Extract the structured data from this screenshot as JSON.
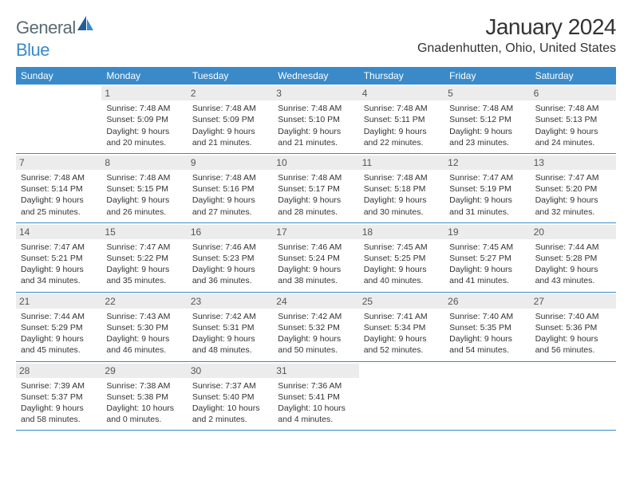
{
  "brand": {
    "part1": "General",
    "part2": "Blue"
  },
  "title": "January 2024",
  "location": "Gnadenhutten, Ohio, United States",
  "colors": {
    "header_bg": "#3a8ac9",
    "header_fg": "#ffffff",
    "divider": "#3a8ac9",
    "daynum_bg": "#ececec",
    "logo_gray": "#5a6a72",
    "logo_blue": "#3a8ac9"
  },
  "dayNames": [
    "Sunday",
    "Monday",
    "Tuesday",
    "Wednesday",
    "Thursday",
    "Friday",
    "Saturday"
  ],
  "weeks": [
    [
      {
        "empty": true
      },
      {
        "n": "1",
        "sr": "Sunrise: 7:48 AM",
        "ss": "Sunset: 5:09 PM",
        "d1": "Daylight: 9 hours",
        "d2": "and 20 minutes."
      },
      {
        "n": "2",
        "sr": "Sunrise: 7:48 AM",
        "ss": "Sunset: 5:09 PM",
        "d1": "Daylight: 9 hours",
        "d2": "and 21 minutes."
      },
      {
        "n": "3",
        "sr": "Sunrise: 7:48 AM",
        "ss": "Sunset: 5:10 PM",
        "d1": "Daylight: 9 hours",
        "d2": "and 21 minutes."
      },
      {
        "n": "4",
        "sr": "Sunrise: 7:48 AM",
        "ss": "Sunset: 5:11 PM",
        "d1": "Daylight: 9 hours",
        "d2": "and 22 minutes."
      },
      {
        "n": "5",
        "sr": "Sunrise: 7:48 AM",
        "ss": "Sunset: 5:12 PM",
        "d1": "Daylight: 9 hours",
        "d2": "and 23 minutes."
      },
      {
        "n": "6",
        "sr": "Sunrise: 7:48 AM",
        "ss": "Sunset: 5:13 PM",
        "d1": "Daylight: 9 hours",
        "d2": "and 24 minutes."
      }
    ],
    [
      {
        "n": "7",
        "sr": "Sunrise: 7:48 AM",
        "ss": "Sunset: 5:14 PM",
        "d1": "Daylight: 9 hours",
        "d2": "and 25 minutes."
      },
      {
        "n": "8",
        "sr": "Sunrise: 7:48 AM",
        "ss": "Sunset: 5:15 PM",
        "d1": "Daylight: 9 hours",
        "d2": "and 26 minutes."
      },
      {
        "n": "9",
        "sr": "Sunrise: 7:48 AM",
        "ss": "Sunset: 5:16 PM",
        "d1": "Daylight: 9 hours",
        "d2": "and 27 minutes."
      },
      {
        "n": "10",
        "sr": "Sunrise: 7:48 AM",
        "ss": "Sunset: 5:17 PM",
        "d1": "Daylight: 9 hours",
        "d2": "and 28 minutes."
      },
      {
        "n": "11",
        "sr": "Sunrise: 7:48 AM",
        "ss": "Sunset: 5:18 PM",
        "d1": "Daylight: 9 hours",
        "d2": "and 30 minutes."
      },
      {
        "n": "12",
        "sr": "Sunrise: 7:47 AM",
        "ss": "Sunset: 5:19 PM",
        "d1": "Daylight: 9 hours",
        "d2": "and 31 minutes."
      },
      {
        "n": "13",
        "sr": "Sunrise: 7:47 AM",
        "ss": "Sunset: 5:20 PM",
        "d1": "Daylight: 9 hours",
        "d2": "and 32 minutes."
      }
    ],
    [
      {
        "n": "14",
        "sr": "Sunrise: 7:47 AM",
        "ss": "Sunset: 5:21 PM",
        "d1": "Daylight: 9 hours",
        "d2": "and 34 minutes."
      },
      {
        "n": "15",
        "sr": "Sunrise: 7:47 AM",
        "ss": "Sunset: 5:22 PM",
        "d1": "Daylight: 9 hours",
        "d2": "and 35 minutes."
      },
      {
        "n": "16",
        "sr": "Sunrise: 7:46 AM",
        "ss": "Sunset: 5:23 PM",
        "d1": "Daylight: 9 hours",
        "d2": "and 36 minutes."
      },
      {
        "n": "17",
        "sr": "Sunrise: 7:46 AM",
        "ss": "Sunset: 5:24 PM",
        "d1": "Daylight: 9 hours",
        "d2": "and 38 minutes."
      },
      {
        "n": "18",
        "sr": "Sunrise: 7:45 AM",
        "ss": "Sunset: 5:25 PM",
        "d1": "Daylight: 9 hours",
        "d2": "and 40 minutes."
      },
      {
        "n": "19",
        "sr": "Sunrise: 7:45 AM",
        "ss": "Sunset: 5:27 PM",
        "d1": "Daylight: 9 hours",
        "d2": "and 41 minutes."
      },
      {
        "n": "20",
        "sr": "Sunrise: 7:44 AM",
        "ss": "Sunset: 5:28 PM",
        "d1": "Daylight: 9 hours",
        "d2": "and 43 minutes."
      }
    ],
    [
      {
        "n": "21",
        "sr": "Sunrise: 7:44 AM",
        "ss": "Sunset: 5:29 PM",
        "d1": "Daylight: 9 hours",
        "d2": "and 45 minutes."
      },
      {
        "n": "22",
        "sr": "Sunrise: 7:43 AM",
        "ss": "Sunset: 5:30 PM",
        "d1": "Daylight: 9 hours",
        "d2": "and 46 minutes."
      },
      {
        "n": "23",
        "sr": "Sunrise: 7:42 AM",
        "ss": "Sunset: 5:31 PM",
        "d1": "Daylight: 9 hours",
        "d2": "and 48 minutes."
      },
      {
        "n": "24",
        "sr": "Sunrise: 7:42 AM",
        "ss": "Sunset: 5:32 PM",
        "d1": "Daylight: 9 hours",
        "d2": "and 50 minutes."
      },
      {
        "n": "25",
        "sr": "Sunrise: 7:41 AM",
        "ss": "Sunset: 5:34 PM",
        "d1": "Daylight: 9 hours",
        "d2": "and 52 minutes."
      },
      {
        "n": "26",
        "sr": "Sunrise: 7:40 AM",
        "ss": "Sunset: 5:35 PM",
        "d1": "Daylight: 9 hours",
        "d2": "and 54 minutes."
      },
      {
        "n": "27",
        "sr": "Sunrise: 7:40 AM",
        "ss": "Sunset: 5:36 PM",
        "d1": "Daylight: 9 hours",
        "d2": "and 56 minutes."
      }
    ],
    [
      {
        "n": "28",
        "sr": "Sunrise: 7:39 AM",
        "ss": "Sunset: 5:37 PM",
        "d1": "Daylight: 9 hours",
        "d2": "and 58 minutes."
      },
      {
        "n": "29",
        "sr": "Sunrise: 7:38 AM",
        "ss": "Sunset: 5:38 PM",
        "d1": "Daylight: 10 hours",
        "d2": "and 0 minutes."
      },
      {
        "n": "30",
        "sr": "Sunrise: 7:37 AM",
        "ss": "Sunset: 5:40 PM",
        "d1": "Daylight: 10 hours",
        "d2": "and 2 minutes."
      },
      {
        "n": "31",
        "sr": "Sunrise: 7:36 AM",
        "ss": "Sunset: 5:41 PM",
        "d1": "Daylight: 10 hours",
        "d2": "and 4 minutes."
      },
      {
        "empty": true
      },
      {
        "empty": true
      },
      {
        "empty": true
      }
    ]
  ]
}
